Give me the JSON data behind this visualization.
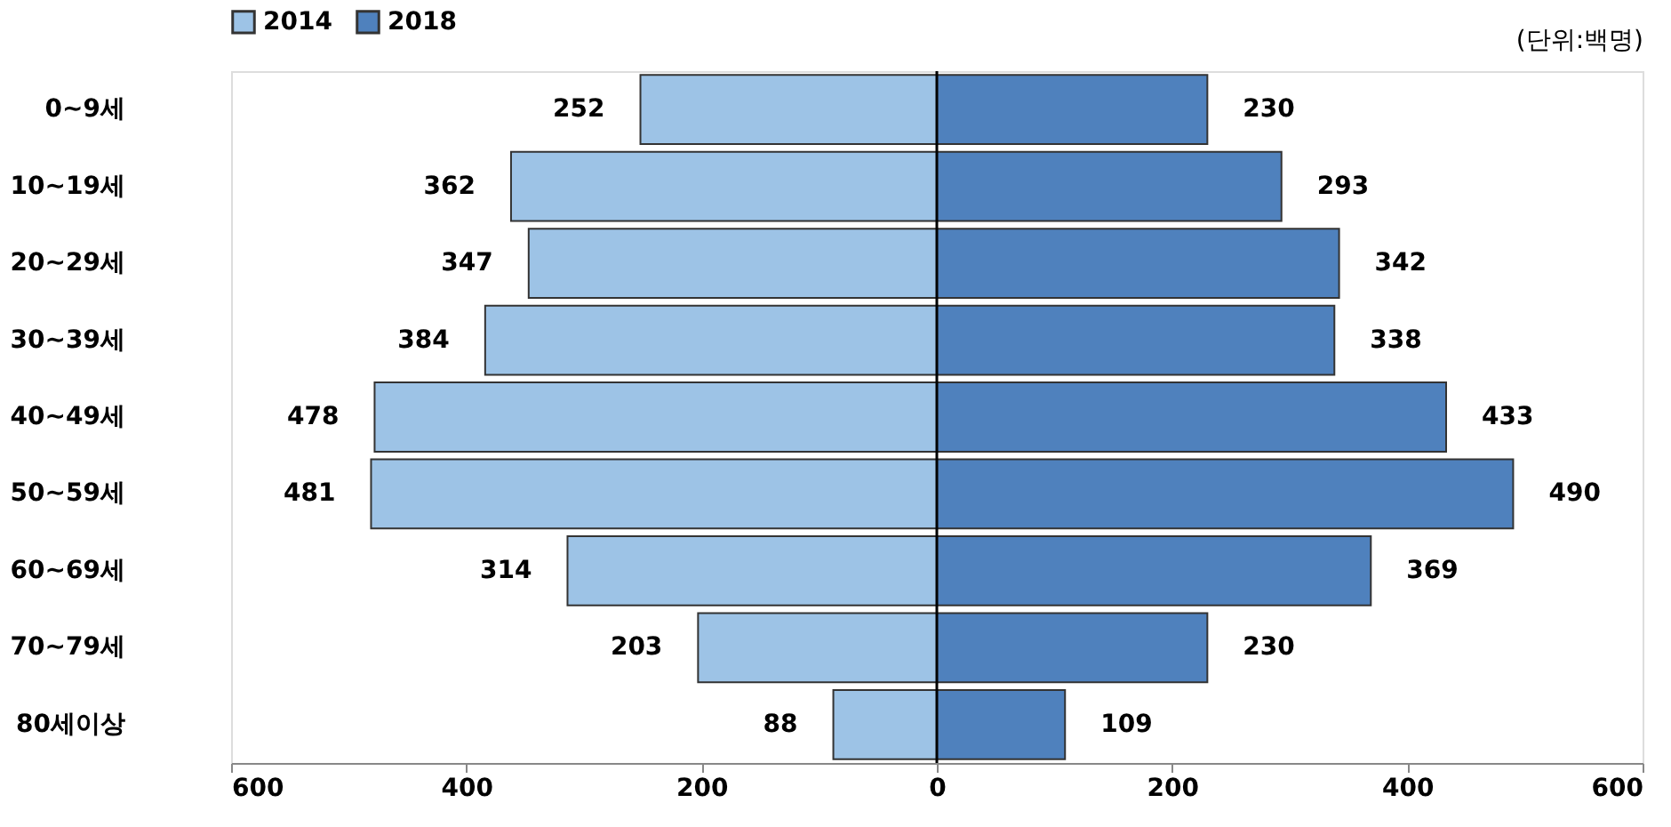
{
  "chart_data": {
    "type": "bar",
    "orientation": "horizontal",
    "categories": [
      "0~9세",
      "10~19세",
      "20~29세",
      "30~39세",
      "40~49세",
      "50~59세",
      "60~69세",
      "70~79세",
      "80세이상"
    ],
    "series": [
      {
        "name": "2014",
        "color": "#9dc3e6",
        "values": [
          252,
          362,
          347,
          384,
          478,
          481,
          314,
          203,
          88
        ],
        "base": [
          -252,
          -362,
          -347,
          -384,
          -478,
          -481,
          -314,
          -203,
          -88
        ],
        "value_labels": [
          "252",
          "362",
          "347",
          "384",
          "478",
          "481",
          "314",
          "203",
          "88"
        ]
      },
      {
        "name": "2018",
        "color": "#4f81bd",
        "values": [
          230,
          293,
          342,
          338,
          433,
          490,
          369,
          230,
          109
        ],
        "value_labels": [
          "230",
          "293",
          "342",
          "338",
          "433",
          "490",
          "369",
          "230",
          "109"
        ]
      }
    ],
    "xlim": [
      -600,
      600
    ],
    "xticks": [
      {
        "value": -600,
        "label": "600"
      },
      {
        "value": -400,
        "label": "400"
      },
      {
        "value": -200,
        "label": "200"
      },
      0,
      200,
      400,
      600
    ],
    "ref_lines": [
      {
        "axis": "x",
        "value": 0,
        "label": null
      }
    ],
    "annotations": [
      "(단위:백명)"
    ],
    "legend": "top",
    "grid": false
  }
}
